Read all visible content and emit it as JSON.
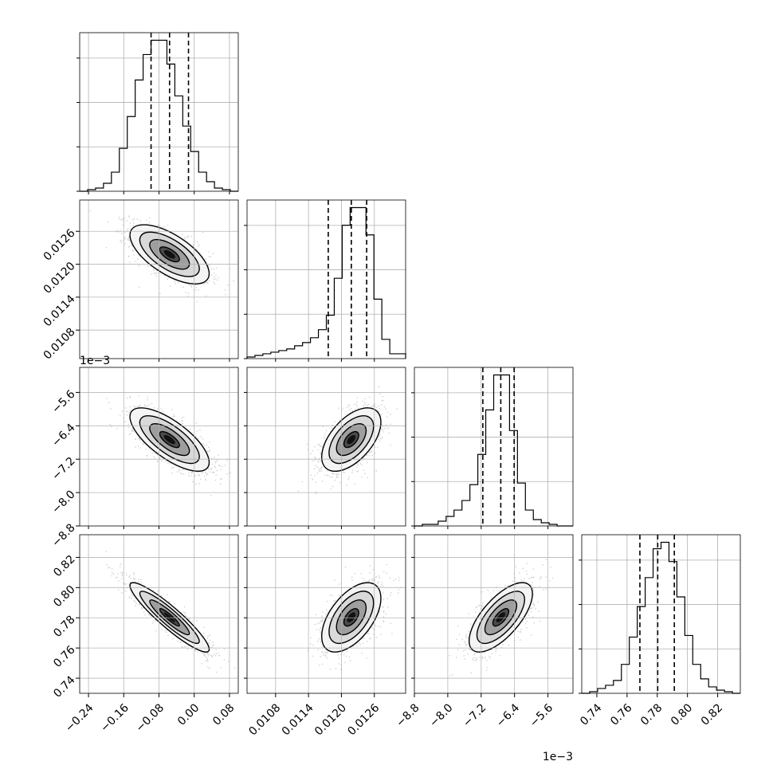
{
  "chart_data": {
    "type": "corner",
    "parameters": [
      {
        "name": "",
        "range": [
          -0.26,
          0.1
        ],
        "ticks": [
          "−0.24",
          "−0.16",
          "−0.08",
          "0.00",
          "0.08"
        ],
        "tick_values": [
          -0.24,
          -0.16,
          -0.08,
          0.0,
          0.08
        ],
        "offset": "",
        "quantiles": [
          -0.098,
          -0.056,
          -0.013
        ],
        "hist": [
          0,
          1,
          2,
          5,
          12,
          27,
          47,
          70,
          86,
          95,
          95,
          80,
          60,
          41,
          25,
          12,
          6,
          2,
          1,
          0
        ]
      },
      {
        "name": "",
        "range": [
          0.01028,
          0.01317
        ],
        "ticks": [
          "0.0108",
          "0.0114",
          "0.0120",
          "0.0126"
        ],
        "tick_values": [
          0.0108,
          0.0114,
          0.012,
          0.0126
        ],
        "offset": "",
        "quantiles": [
          0.01176,
          0.01218,
          0.01246
        ],
        "hist": [
          1,
          2,
          3,
          4,
          5,
          6,
          8,
          10,
          13,
          18,
          27,
          50,
          83,
          94,
          94,
          77,
          37,
          12,
          3,
          3
        ]
      },
      {
        "name": "",
        "range": [
          -8.8,
          -5.0
        ],
        "ticks": [
          "−8.8",
          "−8.0",
          "−7.2",
          "−6.4",
          "−5.6"
        ],
        "tick_values": [
          -8.8,
          -8.0,
          -7.2,
          -6.4,
          -5.6
        ],
        "offset": "1e−3",
        "quantiles": [
          -7.16,
          -6.73,
          -6.41
        ],
        "hist": [
          0,
          1,
          1,
          3,
          6,
          10,
          16,
          26,
          45,
          73,
          95,
          95,
          60,
          27,
          10,
          4,
          2,
          1,
          0,
          0
        ]
      },
      {
        "name": "",
        "range": [
          0.73,
          0.835
        ],
        "ticks": [
          "0.74",
          "0.76",
          "0.78",
          "0.80",
          "0.82"
        ],
        "tick_values": [
          0.74,
          0.76,
          0.78,
          0.8,
          0.82
        ],
        "offset": "",
        "quantiles": [
          0.7685,
          0.7803,
          0.7913
        ],
        "hist": [
          0,
          1,
          3,
          5,
          8,
          18,
          35,
          54,
          72,
          90,
          94,
          82,
          60,
          36,
          18,
          9,
          4,
          2,
          1,
          0
        ]
      }
    ],
    "left_axis_offsets": [
      "",
      "",
      "1e−3",
      ""
    ],
    "grid": true,
    "pairs": [
      {
        "x": 0,
        "y": 1,
        "mean": [
          -0.056,
          0.01218
        ],
        "sd": [
          0.045,
          0.00027
        ],
        "rho": -0.65
      },
      {
        "x": 0,
        "y": 2,
        "mean": [
          -0.056,
          -6.73
        ],
        "sd": [
          0.045,
          0.38
        ],
        "rho": -0.72
      },
      {
        "x": 1,
        "y": 2,
        "mean": [
          0.01218,
          -6.73
        ],
        "sd": [
          0.00027,
          0.38
        ],
        "rho": 0.55
      },
      {
        "x": 0,
        "y": 3,
        "mean": [
          -0.056,
          0.7803
        ],
        "sd": [
          0.045,
          0.0115
        ],
        "rho": -0.92
      },
      {
        "x": 1,
        "y": 3,
        "mean": [
          0.01218,
          0.7803
        ],
        "sd": [
          0.00027,
          0.0115
        ],
        "rho": 0.55
      },
      {
        "x": 2,
        "y": 3,
        "mean": [
          -6.73,
          0.7803
        ],
        "sd": [
          0.38,
          0.0115
        ],
        "rho": 0.68
      }
    ]
  }
}
